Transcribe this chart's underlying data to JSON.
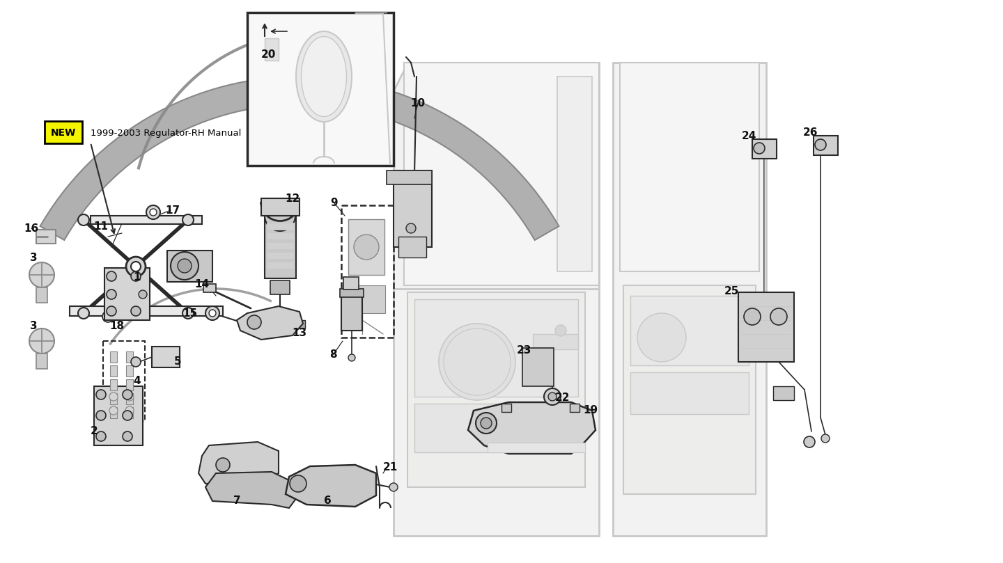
{
  "background_color": "#ffffff",
  "line_color": "#2a2a2a",
  "light_gray": "#c8c8c8",
  "mid_gray": "#888888",
  "dark_gray": "#444444",
  "fill_gray": "#e8e8e8",
  "fill_light": "#f2f2f2",
  "yellow_new": "#f5f500",
  "new_label": "NEW",
  "new_desc": "1999-2003 Regulator-RH Manual",
  "figsize": [
    14.4,
    8.09
  ],
  "dpi": 100,
  "xlim": [
    0,
    1440
  ],
  "ylim": [
    0,
    809
  ]
}
